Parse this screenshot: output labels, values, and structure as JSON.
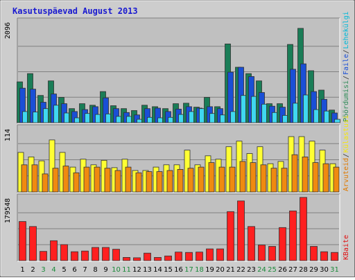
{
  "chart_data": {
    "type": "bar",
    "title": "Kasutuspäevad August 2013",
    "categories": [
      "1",
      "2",
      "3",
      "4",
      "5",
      "6",
      "7",
      "8",
      "9",
      "10",
      "11",
      "12",
      "13",
      "14",
      "15",
      "16",
      "17",
      "18",
      "19",
      "20",
      "21",
      "22",
      "23",
      "24",
      "25",
      "26",
      "27",
      "28",
      "29",
      "30",
      "31"
    ],
    "weekend_days": [
      "3",
      "4",
      "10",
      "11",
      "17",
      "18",
      "24",
      "25",
      "31"
    ],
    "panels": [
      {
        "ymax_label": "2096",
        "ymax": 2096,
        "side_labels": [
          {
            "text": "Pöördumisi",
            "color": "#2e8b57"
          },
          {
            "text": "Faile",
            "color": "#1a4fd6"
          },
          {
            "text": "Lehekülgi",
            "color": "#00b8d8"
          }
        ],
        "series": [
          {
            "name": "Pöördumisi",
            "color": "#1a7d57",
            "values": [
              840,
              1010,
              560,
              860,
              520,
              290,
              390,
              360,
              640,
              350,
              290,
              250,
              360,
              330,
              290,
              390,
              400,
              320,
              520,
              330,
              1620,
              1140,
              1010,
              860,
              390,
              390,
              1610,
              1940,
              1070,
              670,
              260
            ]
          },
          {
            "name": "Faile",
            "color": "#1a4fd6",
            "values": [
              710,
              690,
              420,
              590,
              390,
              230,
              270,
              330,
              510,
              290,
              210,
              160,
              290,
              300,
              230,
              280,
              330,
              300,
              330,
              290,
              1040,
              1140,
              950,
              620,
              340,
              320,
              1100,
              1210,
              640,
              480,
              200
            ]
          },
          {
            "name": "Lehekülgi",
            "color": "#40d8f0",
            "values": [
              230,
              220,
              290,
              360,
              200,
              100,
              190,
              170,
              180,
              130,
              130,
              70,
              110,
              100,
              110,
              170,
              230,
              290,
              190,
              160,
              230,
              560,
              540,
              380,
              210,
              150,
              400,
              570,
              270,
              240,
              70
            ]
          }
        ]
      },
      {
        "ymax_label": "114",
        "ymax": 114,
        "side_labels": [
          {
            "text": "Arvuteid",
            "color": "#e07a00"
          },
          {
            "text": "Külastusi",
            "color": "#f5e60a"
          }
        ],
        "series": [
          {
            "name": "Külastusi",
            "color": "#ffff33",
            "values": [
              70,
              62,
              55,
              92,
              70,
              44,
              58,
              48,
              56,
              43,
              58,
              38,
              38,
              44,
              48,
              48,
              74,
              48,
              64,
              58,
              80,
              90,
              68,
              80,
              50,
              54,
              98,
              98,
              90,
              74,
              50
            ]
          },
          {
            "name": "Arvuteid",
            "color": "#f08a10",
            "values": [
              48,
              48,
              32,
              42,
              46,
              34,
              44,
              44,
              42,
              38,
              44,
              34,
              36,
              36,
              38,
              40,
              42,
              44,
              52,
              44,
              44,
              54,
              52,
              48,
              42,
              42,
              66,
              62,
              52,
              50,
              44
            ]
          }
        ]
      },
      {
        "ymax_label": "179548",
        "ymax": 179548,
        "side_labels": [
          {
            "text": "KBaite",
            "color": "#e01010"
          }
        ],
        "series": [
          {
            "name": "KBaite",
            "color": "#ff2020",
            "values": [
              110000,
              96000,
              26000,
              56000,
              45000,
              25000,
              27000,
              37000,
              37000,
              32000,
              9000,
              8000,
              21000,
              9000,
              13000,
              24000,
              23000,
              24000,
              33000,
              33000,
              138000,
              168000,
              96000,
              44000,
              40000,
              93000,
              140000,
              178000,
              40000,
              25000,
              23000
            ]
          }
        ]
      }
    ]
  }
}
